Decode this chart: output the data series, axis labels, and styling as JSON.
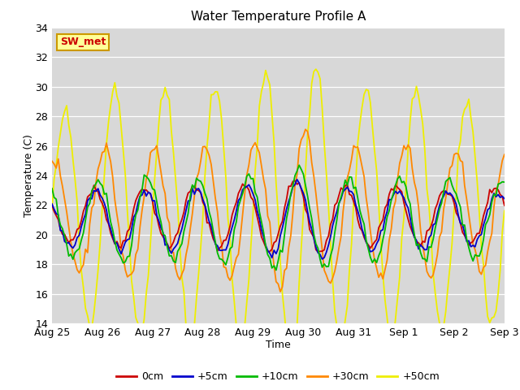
{
  "title": "Water Temperature Profile A",
  "xlabel": "Time",
  "ylabel": "Temperature (C)",
  "ylim": [
    14,
    34
  ],
  "yticks": [
    14,
    16,
    18,
    20,
    22,
    24,
    26,
    28,
    30,
    32,
    34
  ],
  "fig_bg": "#ffffff",
  "plot_bg": "#d8d8d8",
  "grid_color": "#ffffff",
  "series_colors": {
    "0cm": "#cc0000",
    "+5cm": "#0000cc",
    "+10cm": "#00bb00",
    "+30cm": "#ff8800",
    "+50cm": "#eeee00"
  },
  "annotation_text": "SW_met",
  "annotation_bg": "#ffff99",
  "annotation_border": "#cc9900",
  "day_labels": [
    "Aug 25",
    "Aug 26",
    "Aug 27",
    "Aug 28",
    "Aug 29",
    "Aug 30",
    "Aug 31",
    "Sep 1",
    "Sep 2",
    "Sep 3"
  ],
  "title_fontsize": 11,
  "axis_fontsize": 9,
  "lw": 1.3
}
